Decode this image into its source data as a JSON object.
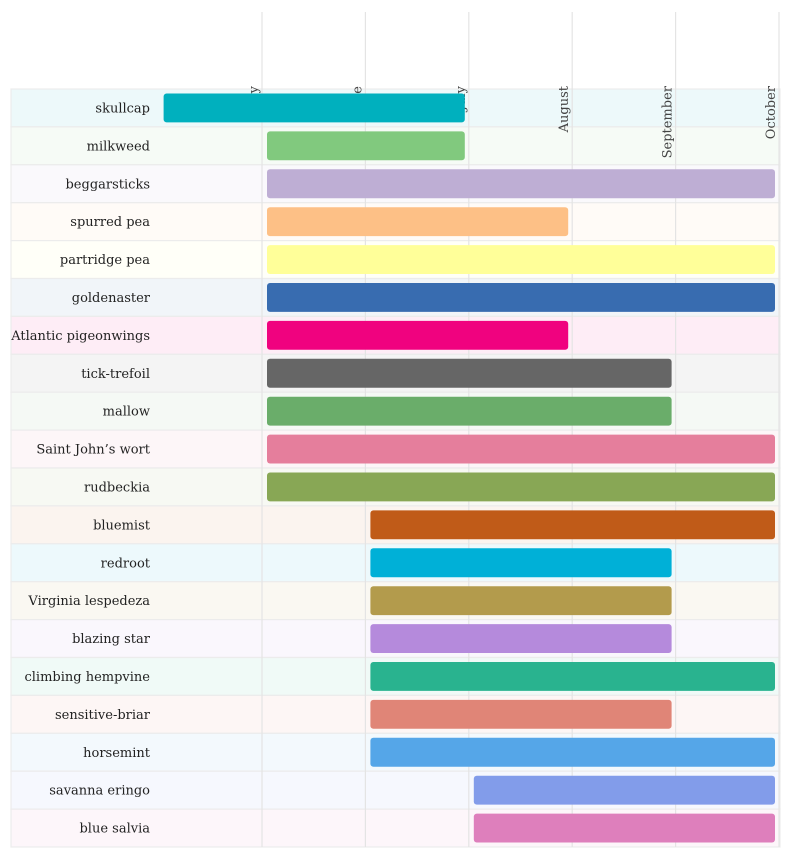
{
  "chart_data": {
    "type": "bar",
    "orientation": "horizontal-range",
    "title": "",
    "xlabel": "",
    "ylabel": "",
    "x_ticks": [
      "May",
      "June",
      "July",
      "August",
      "September",
      "October"
    ],
    "xlim": [
      "May",
      "October"
    ],
    "grid": true,
    "legend": "none",
    "series": [
      {
        "label": "skullcap",
        "start": "Apr",
        "end": "Jul",
        "color": "#00b0be"
      },
      {
        "label": "milkweed",
        "start": "May",
        "end": "Jul",
        "color": "#81c97e"
      },
      {
        "label": "beggarsticks",
        "start": "May",
        "end": "Oct",
        "color": "#beaed4"
      },
      {
        "label": "spurred pea",
        "start": "May",
        "end": "Aug",
        "color": "#fdc086"
      },
      {
        "label": "partridge pea",
        "start": "May",
        "end": "Oct",
        "color": "#ffff99"
      },
      {
        "label": "goldenaster",
        "start": "May",
        "end": "Oct",
        "color": "#386cb0"
      },
      {
        "label": "Atlantic pigeonwings",
        "start": "May",
        "end": "Aug",
        "color": "#f0027f"
      },
      {
        "label": "tick-trefoil",
        "start": "May",
        "end": "Sep",
        "color": "#666666"
      },
      {
        "label": "mallow",
        "start": "May",
        "end": "Sep",
        "color": "#6aad6a"
      },
      {
        "label": "Saint John’s wort",
        "start": "May",
        "end": "Oct",
        "color": "#e57e9c"
      },
      {
        "label": "rudbeckia",
        "start": "May",
        "end": "Oct",
        "color": "#88a755"
      },
      {
        "label": "bluemist",
        "start": "Jun",
        "end": "Oct",
        "color": "#c05b18"
      },
      {
        "label": "redroot",
        "start": "Jun",
        "end": "Sep",
        "color": "#00b0d7"
      },
      {
        "label": "Virginia lespedeza",
        "start": "Jun",
        "end": "Sep",
        "color": "#b39b4c"
      },
      {
        "label": "blazing star",
        "start": "Jun",
        "end": "Sep",
        "color": "#b58adc"
      },
      {
        "label": "climbing hempvine",
        "start": "Jun",
        "end": "Oct",
        "color": "#29b38f"
      },
      {
        "label": "sensitive-briar",
        "start": "Jun",
        "end": "Sep",
        "color": "#e08577"
      },
      {
        "label": "horsemint",
        "start": "Jun",
        "end": "Oct",
        "color": "#55a6e8"
      },
      {
        "label": "savanna eringo",
        "start": "Jul",
        "end": "Oct",
        "color": "#829cea"
      },
      {
        "label": "blue salvia",
        "start": "Jul",
        "end": "Oct",
        "color": "#de7fbc"
      }
    ]
  }
}
